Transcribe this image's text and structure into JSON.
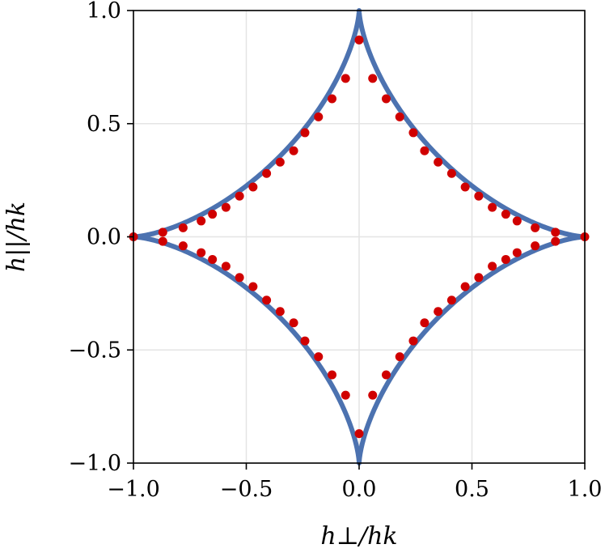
{
  "chart_data": {
    "type": "scatter",
    "title": "",
    "xlabel": "h⊥/hk",
    "ylabel": "h||/hk",
    "xlim": [
      -1.0,
      1.0
    ],
    "ylim": [
      -1.0,
      1.0
    ],
    "grid": true,
    "x_ticks": [
      -1.0,
      -0.5,
      0.0,
      0.5,
      1.0
    ],
    "y_ticks": [
      -1.0,
      -0.5,
      0.0,
      0.5,
      1.0
    ],
    "x_tick_labels": [
      "−1.0",
      "−0.5",
      "0.0",
      "0.5",
      "1.0"
    ],
    "y_tick_labels": [
      "−1.0",
      "−0.5",
      "0.0",
      "0.5",
      "1.0"
    ],
    "curve": {
      "kind": "astroid",
      "equation": "|x|^(2/3) + |y|^(2/3) = 1",
      "color": "#4c72b0"
    },
    "points_color": "#d00000",
    "points_quadrant": [
      [
        0.0,
        0.87
      ],
      [
        0.06,
        0.7
      ],
      [
        0.12,
        0.61
      ],
      [
        0.18,
        0.53
      ],
      [
        0.24,
        0.46
      ],
      [
        0.29,
        0.38
      ],
      [
        0.35,
        0.33
      ],
      [
        0.41,
        0.28
      ],
      [
        0.47,
        0.22
      ],
      [
        0.53,
        0.18
      ],
      [
        0.59,
        0.13
      ],
      [
        0.65,
        0.1
      ],
      [
        0.7,
        0.07
      ],
      [
        0.78,
        0.04
      ],
      [
        0.87,
        0.02
      ],
      [
        1.0,
        0.0
      ]
    ]
  }
}
